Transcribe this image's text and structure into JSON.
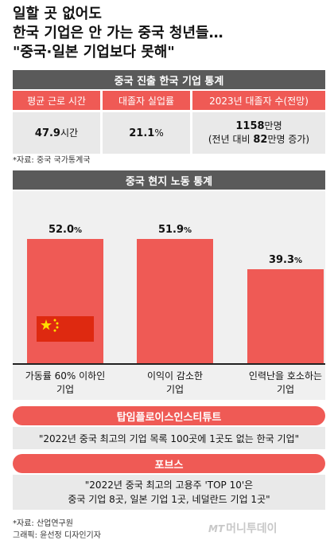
{
  "title": {
    "line1": "일할 곳 없어도",
    "line2": "한국 기업은 안 가는 중국 청년들…",
    "line3": "\"중국·일본 기업보다 못해\""
  },
  "stats": {
    "header": "중국 진출 한국 기업 통계",
    "columns": [
      "평균 근로 시간",
      "대졸자 실업률",
      "2023년 대졸자 수(전망)"
    ],
    "values": [
      {
        "bold": "47.9",
        "rest": "시간"
      },
      {
        "bold": "21.1",
        "rest": "%"
      },
      {
        "line1_bold": "1158",
        "line1_rest": "만명",
        "line2_pre": "(전년 대비 ",
        "line2_bold": "82",
        "line2_rest": "만명 증가)"
      }
    ],
    "note": "*자료: 중국 국가통계국"
  },
  "chart_data": {
    "type": "bar",
    "title": "중국 현지 노동 통계",
    "categories": [
      [
        "가동률 60% 이하인",
        "기업"
      ],
      [
        "이익이 감소한",
        "기업"
      ],
      [
        "인력난을 호소하는",
        "기업"
      ]
    ],
    "values": [
      52.0,
      51.9,
      39.3
    ],
    "value_labels": [
      "52.0",
      "51.9",
      "39.3"
    ],
    "unit": "%",
    "ylim": [
      0,
      60
    ],
    "bar_color": "#ef5a55",
    "background": "#f0f0f0"
  },
  "sources": {
    "s1_header": "탑임플로이스인스티튜트",
    "s1_text": "\"2022년 중국 최고의 기업 목록 100곳에 1곳도 없는 한국 기업\"",
    "s2_header": "포브스",
    "s2_line1": "\"2022년 중국 최고의 고용주 'TOP 10'은",
    "s2_line2": "중국 기업 8곳, 일본 기업 1곳, 네덜란드 기업 1곳\""
  },
  "footer": {
    "source": "*자료: 산업연구원",
    "credit": "그래픽: 윤선정 디자인기자",
    "logo_mt": "MT",
    "logo_text": "머니투데이"
  },
  "colors": {
    "accent": "#ef5a55",
    "dark_header": "#5a5a5a",
    "light_cell": "#e9e9e9"
  }
}
